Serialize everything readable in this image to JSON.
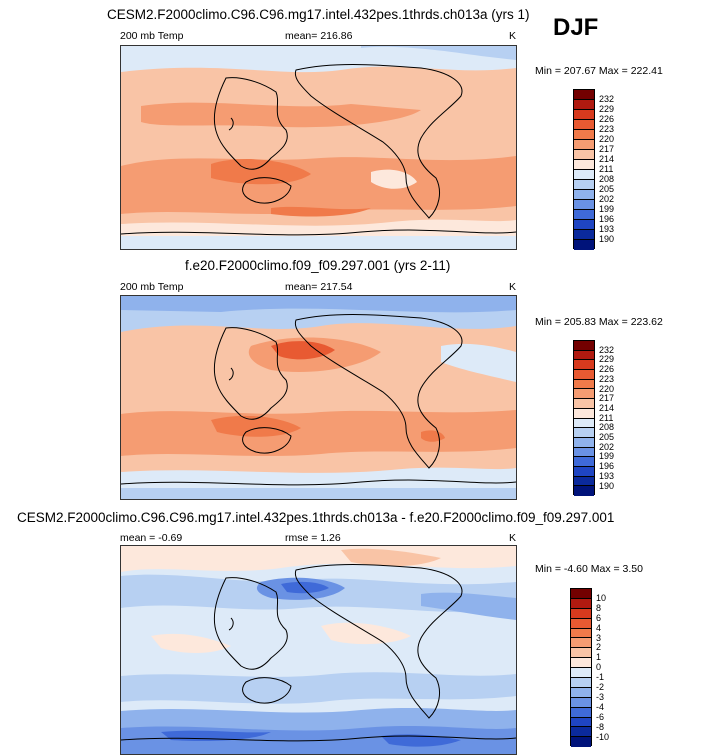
{
  "season": "DJF",
  "panels": [
    {
      "title": "CESM2.F2000climo.C96.C96.mg17.intel.432pes.1thrds.ch013a (yrs 1)",
      "left_label": "200 mb Temp",
      "center_label": "mean= 216.86",
      "units": "K",
      "minmax": "Min = 207.67 Max = 222.41",
      "colorbar": {
        "labels": [
          "232",
          "229",
          "226",
          "223",
          "220",
          "217",
          "214",
          "211",
          "208",
          "205",
          "202",
          "199",
          "196",
          "193",
          "190"
        ],
        "colors": [
          "#730000",
          "#b01a10",
          "#d73a1e",
          "#e85a32",
          "#f07a4a",
          "#f59c72",
          "#f9c4a6",
          "#fde8dc",
          "#ddeaf8",
          "#b7d0f2",
          "#8fb2ec",
          "#6a92e4",
          "#3f6ad8",
          "#1f45c2",
          "#0b2a9c",
          "#00137a"
        ]
      }
    },
    {
      "title": "f.e20.F2000climo.f09_f09.297.001 (yrs 2-11)",
      "left_label": "200 mb Temp",
      "center_label": "mean= 217.54",
      "units": "K",
      "minmax": "Min = 205.83 Max = 223.62",
      "colorbar": {
        "labels": [
          "232",
          "229",
          "226",
          "223",
          "220",
          "217",
          "214",
          "211",
          "208",
          "205",
          "202",
          "199",
          "196",
          "193",
          "190"
        ],
        "colors": [
          "#730000",
          "#b01a10",
          "#d73a1e",
          "#e85a32",
          "#f07a4a",
          "#f59c72",
          "#f9c4a6",
          "#fde8dc",
          "#ddeaf8",
          "#b7d0f2",
          "#8fb2ec",
          "#6a92e4",
          "#3f6ad8",
          "#1f45c2",
          "#0b2a9c",
          "#00137a"
        ]
      }
    },
    {
      "title": "CESM2.F2000climo.C96.C96.mg17.intel.432pes.1thrds.ch013a - f.e20.F2000climo.f09_f09.297.001",
      "left_label": "mean =  -0.69",
      "center_label": "rmse =   1.26",
      "units": "K",
      "minmax": "Min =  -4.60 Max =   3.50",
      "colorbar": {
        "labels": [
          "10",
          "8",
          "6",
          "4",
          "3",
          "2",
          "1",
          "0",
          "-1",
          "-2",
          "-3",
          "-4",
          "-6",
          "-8",
          "-10"
        ],
        "colors": [
          "#730000",
          "#b01a10",
          "#d73a1e",
          "#e85a32",
          "#f07a4a",
          "#f59c72",
          "#f9c4a6",
          "#fde8dc",
          "#ddeaf8",
          "#b7d0f2",
          "#8fb2ec",
          "#6a92e4",
          "#3f6ad8",
          "#1f45c2",
          "#0b2a9c",
          "#00137a"
        ]
      }
    }
  ]
}
